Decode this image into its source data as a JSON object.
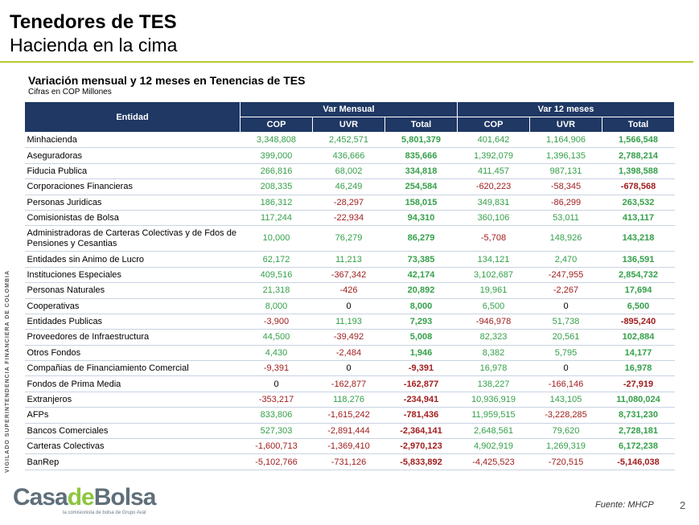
{
  "title": "Tenedores de TES",
  "subtitle": "Hacienda en la cima",
  "table_title": "Variación mensual y 12 meses en Tenencias de TES",
  "table_units": "Cifras en COP Millones",
  "table": {
    "entity_header": "Entidad",
    "group_headers": [
      "Var Mensual",
      "Var 12 meses"
    ],
    "sub_headers": [
      "COP",
      "UVR",
      "Total",
      "COP",
      "UVR",
      "Total"
    ],
    "rows": [
      {
        "entity": "Minhacienda",
        "values": [
          "3,348,808",
          "2,452,571",
          "5,801,379",
          "401,642",
          "1,164,906",
          "1,566,548"
        ]
      },
      {
        "entity": "Aseguradoras",
        "values": [
          "399,000",
          "436,666",
          "835,666",
          "1,392,079",
          "1,396,135",
          "2,788,214"
        ]
      },
      {
        "entity": "Fiducia Publica",
        "values": [
          "266,816",
          "68,002",
          "334,818",
          "411,457",
          "987,131",
          "1,398,588"
        ]
      },
      {
        "entity": "Corporaciones Financieras",
        "values": [
          "208,335",
          "46,249",
          "254,584",
          "-620,223",
          "-58,345",
          "-678,568"
        ]
      },
      {
        "entity": "Personas Juridicas",
        "values": [
          "186,312",
          "-28,297",
          "158,015",
          "349,831",
          "-86,299",
          "263,532"
        ]
      },
      {
        "entity": "Comisionistas de Bolsa",
        "values": [
          "117,244",
          "-22,934",
          "94,310",
          "360,106",
          "53,011",
          "413,117"
        ]
      },
      {
        "entity": "Administradoras de Carteras Colectivas y de Fdos de Pensiones y Cesantias",
        "values": [
          "10,000",
          "76,279",
          "86,279",
          "-5,708",
          "148,926",
          "143,218"
        ]
      },
      {
        "entity": "Entidades sin Animo de Lucro",
        "values": [
          "62,172",
          "11,213",
          "73,385",
          "134,121",
          "2,470",
          "136,591"
        ]
      },
      {
        "entity": "Instituciones Especiales",
        "values": [
          "409,516",
          "-367,342",
          "42,174",
          "3,102,687",
          "-247,955",
          "2,854,732"
        ]
      },
      {
        "entity": "Personas Naturales",
        "values": [
          "21,318",
          "-426",
          "20,892",
          "19,961",
          "-2,267",
          "17,694"
        ]
      },
      {
        "entity": "Cooperativas",
        "values": [
          "8,000",
          "0",
          "8,000",
          "6,500",
          "0",
          "6,500"
        ]
      },
      {
        "entity": "Entidades Publicas",
        "values": [
          "-3,900",
          "11,193",
          "7,293",
          "-946,978",
          "51,738",
          "-895,240"
        ]
      },
      {
        "entity": "Proveedores de Infraestructura",
        "values": [
          "44,500",
          "-39,492",
          "5,008",
          "82,323",
          "20,561",
          "102,884"
        ]
      },
      {
        "entity": "Otros Fondos",
        "values": [
          "4,430",
          "-2,484",
          "1,946",
          "8,382",
          "5,795",
          "14,177"
        ]
      },
      {
        "entity": "Compañias de Financiamiento Comercial",
        "values": [
          "-9,391",
          "0",
          "-9,391",
          "16,978",
          "0",
          "16,978"
        ]
      },
      {
        "entity": "Fondos de Prima Media",
        "values": [
          "0",
          "-162,877",
          "-162,877",
          "138,227",
          "-166,146",
          "-27,919"
        ]
      },
      {
        "entity": "Extranjeros",
        "values": [
          "-353,217",
          "118,276",
          "-234,941",
          "10,936,919",
          "143,105",
          "11,080,024"
        ]
      },
      {
        "entity": "AFPs",
        "values": [
          "833,806",
          "-1,615,242",
          "-781,436",
          "11,959,515",
          "-3,228,285",
          "8,731,230"
        ]
      },
      {
        "entity": "Bancos Comerciales",
        "values": [
          "527,303",
          "-2,891,444",
          "-2,364,141",
          "2,648,561",
          "79,620",
          "2,728,181"
        ]
      },
      {
        "entity": "Carteras Colectivas",
        "values": [
          "-1,600,713",
          "-1,369,410",
          "-2,970,123",
          "4,902,919",
          "1,269,319",
          "6,172,238"
        ]
      },
      {
        "entity": "BanRep",
        "values": [
          "-5,102,766",
          "-731,126",
          "-5,833,892",
          "-4,425,523",
          "-720,515",
          "-5,146,038"
        ]
      }
    ]
  },
  "colors": {
    "header_bg": "#1f3864",
    "positive": "#35a04a",
    "negative": "#a01e1e",
    "rule": "#b7c934"
  },
  "side_label": "VIGILADO SUPERINTENDENCIA FINANCIERA DE COLOMBIA",
  "logo": {
    "part1": "Casa",
    "part2": "de",
    "part3": "Bolsa",
    "tagline": "la comisionista de bolsa de Grupo Aval"
  },
  "source": "Fuente: MHCP",
  "page_number": "2"
}
